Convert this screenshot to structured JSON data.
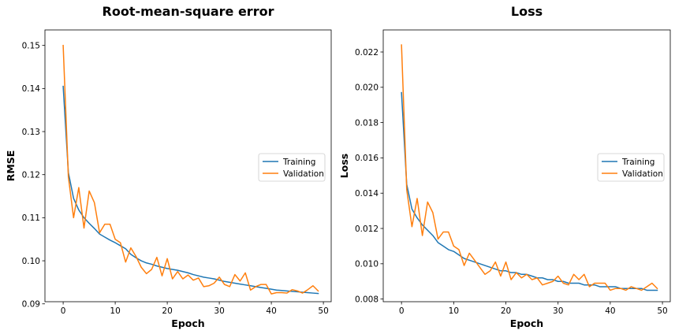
{
  "chart_data": [
    {
      "type": "line",
      "title": "Root-mean-square error",
      "xlabel": "Epoch",
      "ylabel": "RMSE",
      "xlim": [
        -3.5,
        51.5
      ],
      "ylim": [
        0.0905,
        0.1536
      ],
      "xticks": [
        0,
        10,
        20,
        30,
        40,
        50
      ],
      "xtick_labels": [
        "0",
        "10",
        "20",
        "30",
        "40",
        "50"
      ],
      "yticks": [
        0.09,
        0.1,
        0.11,
        0.12,
        0.13,
        0.14,
        0.15
      ],
      "ytick_labels": [
        "0.09",
        "0.10",
        "0.11",
        "0.12",
        "0.13",
        "0.14",
        "0.15"
      ],
      "legend_position": "center-right",
      "grid": false,
      "x": [
        0,
        1,
        2,
        3,
        4,
        5,
        6,
        7,
        8,
        9,
        10,
        11,
        12,
        13,
        14,
        15,
        16,
        17,
        18,
        19,
        20,
        21,
        22,
        23,
        24,
        25,
        26,
        27,
        28,
        29,
        30,
        31,
        32,
        33,
        34,
        35,
        36,
        37,
        38,
        39,
        40,
        41,
        42,
        43,
        44,
        45,
        46,
        47,
        48,
        49
      ],
      "series": [
        {
          "name": "Training",
          "color": "#1f77b4",
          "values": [
            0.1405,
            0.1205,
            0.1145,
            0.1118,
            0.11,
            0.1087,
            0.1075,
            0.1062,
            0.1055,
            0.1048,
            0.1042,
            0.1035,
            0.1028,
            0.1015,
            0.1007,
            0.1,
            0.0995,
            0.0992,
            0.0988,
            0.0985,
            0.0982,
            0.098,
            0.0978,
            0.0975,
            0.0972,
            0.0968,
            0.0965,
            0.0962,
            0.096,
            0.0958,
            0.0955,
            0.0952,
            0.095,
            0.0948,
            0.0946,
            0.0944,
            0.0942,
            0.094,
            0.0938,
            0.0936,
            0.0934,
            0.0932,
            0.0931,
            0.093,
            0.0929,
            0.0928,
            0.0927,
            0.0926,
            0.0925,
            0.0924
          ]
        },
        {
          "name": "Validation",
          "color": "#ff7f0e",
          "values": [
            0.15,
            0.1195,
            0.11,
            0.117,
            0.1076,
            0.1162,
            0.1135,
            0.1065,
            0.1085,
            0.1085,
            0.105,
            0.1042,
            0.0997,
            0.103,
            0.101,
            0.0985,
            0.097,
            0.098,
            0.1008,
            0.0965,
            0.1005,
            0.0958,
            0.0975,
            0.0958,
            0.0967,
            0.0955,
            0.096,
            0.094,
            0.0942,
            0.0948,
            0.0962,
            0.0945,
            0.094,
            0.0968,
            0.0953,
            0.0972,
            0.0932,
            0.094,
            0.0945,
            0.0945,
            0.0923,
            0.0926,
            0.0926,
            0.0925,
            0.0933,
            0.093,
            0.0925,
            0.0933,
            0.0942,
            0.093
          ]
        }
      ]
    },
    {
      "type": "line",
      "title": "Loss",
      "xlabel": "Epoch",
      "ylabel": "Loss",
      "xlim": [
        -3.5,
        51.5
      ],
      "ylim": [
        0.00785,
        0.02325
      ],
      "xticks": [
        0,
        10,
        20,
        30,
        40,
        50
      ],
      "xtick_labels": [
        "0",
        "10",
        "20",
        "30",
        "40",
        "50"
      ],
      "yticks": [
        0.008,
        0.01,
        0.012,
        0.014,
        0.016,
        0.018,
        0.02,
        0.022
      ],
      "ytick_labels": [
        "0.008",
        "0.010",
        "0.012",
        "0.014",
        "0.016",
        "0.018",
        "0.020",
        "0.022"
      ],
      "legend_position": "center-right",
      "grid": false,
      "x": [
        0,
        1,
        2,
        3,
        4,
        5,
        6,
        7,
        8,
        9,
        10,
        11,
        12,
        13,
        14,
        15,
        16,
        17,
        18,
        19,
        20,
        21,
        22,
        23,
        24,
        25,
        26,
        27,
        28,
        29,
        30,
        31,
        32,
        33,
        34,
        35,
        36,
        37,
        38,
        39,
        40,
        41,
        42,
        43,
        44,
        45,
        46,
        47,
        48,
        49
      ],
      "series": [
        {
          "name": "Training",
          "color": "#1f77b4",
          "values": [
            0.0197,
            0.0145,
            0.0131,
            0.0126,
            0.0122,
            0.0119,
            0.0116,
            0.0112,
            0.011,
            0.0108,
            0.0107,
            0.0105,
            0.0103,
            0.0102,
            0.0101,
            0.01,
            0.0099,
            0.0098,
            0.0097,
            0.0096,
            0.0096,
            0.0095,
            0.0095,
            0.0094,
            0.0094,
            0.0093,
            0.0092,
            0.0092,
            0.0091,
            0.0091,
            0.009,
            0.009,
            0.0089,
            0.0089,
            0.0089,
            0.0088,
            0.0088,
            0.0088,
            0.0087,
            0.0087,
            0.0087,
            0.0087,
            0.0086,
            0.0086,
            0.0086,
            0.0086,
            0.0086,
            0.0085,
            0.0085,
            0.0085
          ]
        },
        {
          "name": "Validation",
          "color": "#ff7f0e",
          "values": [
            0.0224,
            0.0142,
            0.0121,
            0.0137,
            0.0116,
            0.0135,
            0.0129,
            0.0114,
            0.0118,
            0.0118,
            0.011,
            0.0108,
            0.0099,
            0.0106,
            0.0102,
            0.0098,
            0.0094,
            0.0096,
            0.0101,
            0.0093,
            0.0101,
            0.0091,
            0.0095,
            0.0092,
            0.0094,
            0.0091,
            0.0092,
            0.0088,
            0.0089,
            0.009,
            0.0093,
            0.0089,
            0.0088,
            0.0094,
            0.0091,
            0.0094,
            0.0087,
            0.0089,
            0.0089,
            0.0089,
            0.0085,
            0.0086,
            0.0086,
            0.0085,
            0.0087,
            0.0086,
            0.0085,
            0.0087,
            0.0089,
            0.0086
          ]
        }
      ]
    }
  ]
}
